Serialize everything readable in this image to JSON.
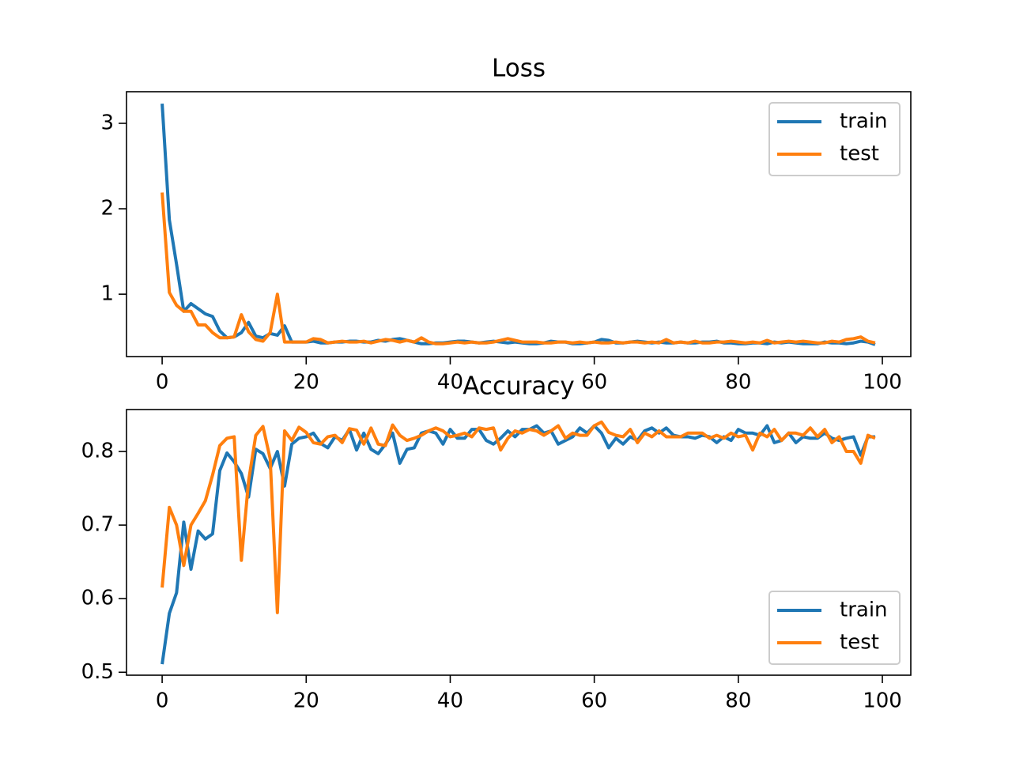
{
  "chart_data": [
    {
      "type": "line",
      "title": "Loss",
      "x": [
        0,
        1,
        2,
        3,
        4,
        5,
        6,
        7,
        8,
        9,
        10,
        11,
        12,
        13,
        14,
        15,
        16,
        17,
        18,
        19,
        20,
        21,
        22,
        23,
        24,
        25,
        26,
        27,
        28,
        29,
        30,
        31,
        32,
        33,
        34,
        35,
        36,
        37,
        38,
        39,
        40,
        41,
        42,
        43,
        44,
        45,
        46,
        47,
        48,
        49,
        50,
        51,
        52,
        53,
        54,
        55,
        56,
        57,
        58,
        59,
        60,
        61,
        62,
        63,
        64,
        65,
        66,
        67,
        68,
        69,
        70,
        71,
        72,
        73,
        74,
        75,
        76,
        77,
        78,
        79,
        80,
        81,
        82,
        83,
        84,
        85,
        86,
        87,
        88,
        89,
        90,
        91,
        92,
        93,
        94,
        95,
        96,
        97,
        98,
        99
      ],
      "series": [
        {
          "name": "train",
          "color": "#1f77b4",
          "values": [
            3.23,
            1.87,
            1.35,
            0.8,
            0.89,
            0.83,
            0.77,
            0.74,
            0.57,
            0.49,
            0.5,
            0.55,
            0.67,
            0.51,
            0.49,
            0.54,
            0.52,
            0.63,
            0.44,
            0.44,
            0.44,
            0.45,
            0.43,
            0.43,
            0.44,
            0.44,
            0.45,
            0.45,
            0.44,
            0.44,
            0.46,
            0.45,
            0.47,
            0.48,
            0.46,
            0.44,
            0.42,
            0.42,
            0.43,
            0.43,
            0.44,
            0.45,
            0.45,
            0.44,
            0.43,
            0.44,
            0.45,
            0.44,
            0.43,
            0.44,
            0.43,
            0.42,
            0.42,
            0.43,
            0.45,
            0.44,
            0.44,
            0.42,
            0.42,
            0.43,
            0.44,
            0.47,
            0.46,
            0.43,
            0.43,
            0.44,
            0.45,
            0.44,
            0.43,
            0.44,
            0.43,
            0.43,
            0.44,
            0.43,
            0.43,
            0.44,
            0.44,
            0.45,
            0.43,
            0.43,
            0.42,
            0.42,
            0.43,
            0.43,
            0.42,
            0.44,
            0.43,
            0.44,
            0.43,
            0.42,
            0.42,
            0.42,
            0.44,
            0.43,
            0.43,
            0.42,
            0.43,
            0.45,
            0.44,
            0.41
          ]
        },
        {
          "name": "test",
          "color": "#ff7f0e",
          "values": [
            2.19,
            1.02,
            0.87,
            0.8,
            0.8,
            0.64,
            0.64,
            0.55,
            0.49,
            0.49,
            0.5,
            0.76,
            0.56,
            0.47,
            0.45,
            0.55,
            1.0,
            0.44,
            0.44,
            0.44,
            0.44,
            0.48,
            0.47,
            0.43,
            0.44,
            0.45,
            0.44,
            0.44,
            0.45,
            0.43,
            0.45,
            0.47,
            0.46,
            0.44,
            0.46,
            0.44,
            0.49,
            0.44,
            0.42,
            0.42,
            0.43,
            0.44,
            0.43,
            0.44,
            0.43,
            0.43,
            0.44,
            0.46,
            0.48,
            0.46,
            0.44,
            0.44,
            0.44,
            0.43,
            0.43,
            0.44,
            0.44,
            0.43,
            0.44,
            0.43,
            0.44,
            0.43,
            0.43,
            0.44,
            0.43,
            0.44,
            0.44,
            0.43,
            0.44,
            0.43,
            0.47,
            0.43,
            0.44,
            0.43,
            0.45,
            0.43,
            0.43,
            0.44,
            0.44,
            0.45,
            0.44,
            0.43,
            0.44,
            0.43,
            0.46,
            0.43,
            0.44,
            0.45,
            0.44,
            0.45,
            0.44,
            0.43,
            0.43,
            0.45,
            0.44,
            0.47,
            0.48,
            0.5,
            0.45,
            0.43
          ]
        }
      ],
      "xlim": [
        -4.95,
        103.95
      ],
      "ylim": [
        0.27,
        3.37
      ],
      "xticks": [
        0,
        20,
        40,
        60,
        80,
        100
      ],
      "yticks": [
        1,
        2,
        3
      ],
      "legend": "upper right"
    },
    {
      "type": "line",
      "title": "Accuracy",
      "x": [
        0,
        1,
        2,
        3,
        4,
        5,
        6,
        7,
        8,
        9,
        10,
        11,
        12,
        13,
        14,
        15,
        16,
        17,
        18,
        19,
        20,
        21,
        22,
        23,
        24,
        25,
        26,
        27,
        28,
        29,
        30,
        31,
        32,
        33,
        34,
        35,
        36,
        37,
        38,
        39,
        40,
        41,
        42,
        43,
        44,
        45,
        46,
        47,
        48,
        49,
        50,
        51,
        52,
        53,
        54,
        55,
        56,
        57,
        58,
        59,
        60,
        61,
        62,
        63,
        64,
        65,
        66,
        67,
        68,
        69,
        70,
        71,
        72,
        73,
        74,
        75,
        76,
        77,
        78,
        79,
        80,
        81,
        82,
        83,
        84,
        85,
        86,
        87,
        88,
        89,
        90,
        91,
        92,
        93,
        94,
        95,
        96,
        97,
        98,
        99
      ],
      "series": [
        {
          "name": "train",
          "color": "#1f77b4",
          "values": [
            0.511,
            0.58,
            0.608,
            0.704,
            0.64,
            0.692,
            0.681,
            0.688,
            0.774,
            0.798,
            0.786,
            0.77,
            0.738,
            0.803,
            0.797,
            0.777,
            0.8,
            0.753,
            0.81,
            0.818,
            0.82,
            0.825,
            0.811,
            0.805,
            0.82,
            0.815,
            0.83,
            0.802,
            0.825,
            0.803,
            0.797,
            0.81,
            0.825,
            0.784,
            0.803,
            0.805,
            0.825,
            0.828,
            0.825,
            0.81,
            0.83,
            0.818,
            0.818,
            0.83,
            0.83,
            0.815,
            0.81,
            0.818,
            0.828,
            0.82,
            0.83,
            0.83,
            0.835,
            0.825,
            0.828,
            0.81,
            0.815,
            0.82,
            0.832,
            0.825,
            0.835,
            0.825,
            0.805,
            0.818,
            0.81,
            0.82,
            0.815,
            0.828,
            0.832,
            0.825,
            0.832,
            0.822,
            0.82,
            0.82,
            0.818,
            0.822,
            0.82,
            0.812,
            0.82,
            0.815,
            0.83,
            0.825,
            0.825,
            0.822,
            0.835,
            0.812,
            0.815,
            0.825,
            0.812,
            0.82,
            0.818,
            0.818,
            0.825,
            0.818,
            0.815,
            0.818,
            0.82,
            0.795,
            0.82,
            0.82
          ]
        },
        {
          "name": "test",
          "color": "#ff7f0e",
          "values": [
            0.615,
            0.724,
            0.7,
            0.645,
            0.7,
            0.716,
            0.733,
            0.768,
            0.808,
            0.818,
            0.82,
            0.652,
            0.76,
            0.822,
            0.834,
            0.79,
            0.581,
            0.828,
            0.815,
            0.833,
            0.826,
            0.812,
            0.81,
            0.82,
            0.822,
            0.812,
            0.831,
            0.829,
            0.81,
            0.832,
            0.81,
            0.808,
            0.836,
            0.822,
            0.815,
            0.818,
            0.822,
            0.828,
            0.832,
            0.828,
            0.82,
            0.822,
            0.825,
            0.82,
            0.832,
            0.83,
            0.832,
            0.802,
            0.818,
            0.828,
            0.825,
            0.83,
            0.828,
            0.822,
            0.828,
            0.835,
            0.818,
            0.825,
            0.822,
            0.822,
            0.835,
            0.84,
            0.826,
            0.822,
            0.82,
            0.83,
            0.812,
            0.825,
            0.82,
            0.828,
            0.82,
            0.82,
            0.82,
            0.825,
            0.825,
            0.825,
            0.818,
            0.822,
            0.818,
            0.825,
            0.82,
            0.822,
            0.802,
            0.825,
            0.82,
            0.83,
            0.815,
            0.825,
            0.825,
            0.822,
            0.832,
            0.82,
            0.83,
            0.812,
            0.82,
            0.8,
            0.8,
            0.784,
            0.822,
            0.818
          ]
        }
      ],
      "xlim": [
        -4.95,
        103.95
      ],
      "ylim": [
        0.496,
        0.857
      ],
      "xticks": [
        0,
        20,
        40,
        60,
        80,
        100
      ],
      "yticks": [
        0.5,
        0.6,
        0.7,
        0.8
      ],
      "legend": "lower right"
    }
  ]
}
